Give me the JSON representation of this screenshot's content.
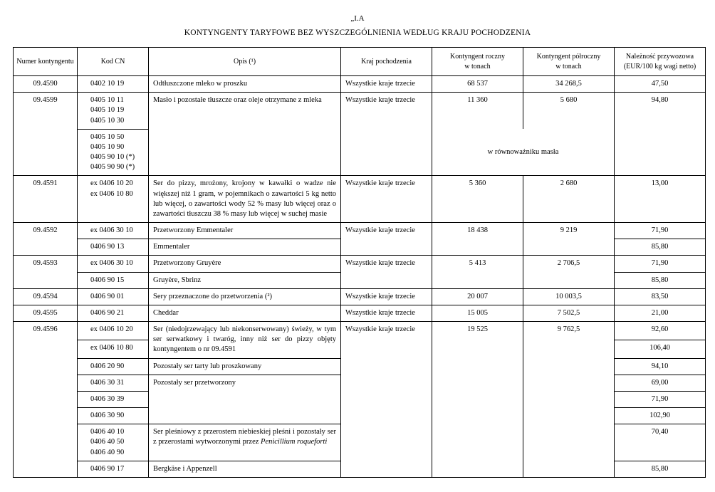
{
  "heading_small": "„I.A",
  "heading_main": "KONTYNGENTY TARYFOWE BEZ WYSZCZEGÓLNIENIA WEDŁUG KRAJU POCHODZENIA",
  "columns": {
    "num": "Numer kontyngentu",
    "cn": "Kod CN",
    "opis": "Opis (¹)",
    "kraj": "Kraj pochodzenia",
    "rocz_l1": "Kontyngent roczny",
    "rocz_l2": "w tonach",
    "pol_l1": "Kontyngent półroczny",
    "pol_l2": "w tonach",
    "nal_l1": "Należność przywozowa",
    "nal_l2": "(EUR/100 kg wagi netto)"
  },
  "equiv_note": "w równoważniku masła",
  "rows": {
    "r4590": {
      "num": "09.4590",
      "cn": "0402 10 19",
      "opis": "Odtłuszczone mleko w proszku",
      "kraj": "Wszystkie kraje trzecie",
      "rocz": "68 537",
      "pol": "34 268,5",
      "nal": "47,50"
    },
    "r4599": {
      "num": "09.4599",
      "cn_a1": "0405 10 11",
      "cn_a2": "0405 10 19",
      "cn_a3": "0405 10 30",
      "cn_b1": "0405 10 50",
      "cn_b2": "0405 10 90",
      "cn_b3": "0405 90 10 (*)",
      "cn_b4": "0405 90 90 (*)",
      "opis": "Masło i pozostałe tłuszcze oraz oleje otrzymane z mleka",
      "kraj": "Wszystkie kraje trzecie",
      "rocz": "11 360",
      "pol": "5 680",
      "nal": "94,80"
    },
    "r4591": {
      "num": "09.4591",
      "cn1": "ex 0406 10 20",
      "cn2": "ex 0406 10 80",
      "opis": "Ser do pizzy, mrożony, krojony w kawałki o wadze nie większej niż 1 gram, w pojemnikach o zawartości 5 kg netto lub więcej, o zawartości wody 52 % masy lub więcej oraz o zawartości tłuszczu 38 % masy lub więcej w suchej masie",
      "kraj": "Wszystkie kraje trzecie",
      "rocz": "5 360",
      "pol": "2 680",
      "nal": "13,00"
    },
    "r4592": {
      "num": "09.4592",
      "cn_a": "ex 0406 30 10",
      "opis_a": "Przetworzony Emmentaler",
      "kraj": "Wszystkie kraje trzecie",
      "rocz": "18 438",
      "pol": "9 219",
      "nal_a": "71,90",
      "cn_b": "0406 90 13",
      "opis_b": "Emmentaler",
      "nal_b": "85,80"
    },
    "r4593": {
      "num": "09.4593",
      "cn_a": "ex 0406 30 10",
      "opis_a": "Przetworzony Gruyère",
      "kraj": "Wszystkie kraje trzecie",
      "rocz": "5 413",
      "pol": "2 706,5",
      "nal_a": "71,90",
      "cn_b": "0406 90 15",
      "opis_b": "Gruyère, Sbrinz",
      "nal_b": "85,80"
    },
    "r4594": {
      "num": "09.4594",
      "cn": "0406 90 01",
      "opis": "Sery przeznaczone do przetworzenia (²)",
      "kraj": "Wszystkie kraje trzecie",
      "rocz": "20 007",
      "pol": "10 003,5",
      "nal": "83,50"
    },
    "r4595": {
      "num": "09.4595",
      "cn": "0406 90 21",
      "opis": "Cheddar",
      "kraj": "Wszystkie kraje trzecie",
      "rocz": "15 005",
      "pol": "7 502,5",
      "nal": "21,00"
    },
    "r4596": {
      "num": "09.4596",
      "kraj": "Wszystkie kraje trzecie",
      "rocz": "19 525",
      "pol": "9 762,5",
      "a_cn": "ex 0406 10 20",
      "a_nal": "92,60",
      "a_opis": "Ser (niedojrzewający lub niekonserwowany) świeży, w tym ser serwatkowy i twaróg, inny niż ser do pizzy objęty kontyngentem o nr 09.4591",
      "b_cn": "ex 0406 10 80",
      "b_nal": "106,40",
      "c_cn": "0406 20 90",
      "c_opis": "Pozostały ser tarty lub proszkowany",
      "c_nal": "94,10",
      "d_cn": "0406 30 31",
      "d_opis": "Pozostały ser przetworzony",
      "d_nal": "69,00",
      "e_cn": "0406 30 39",
      "e_nal": "71,90",
      "f_cn": "0406 30 90",
      "f_nal": "102,90",
      "g_cn1": "0406 40 10",
      "g_cn2": "0406 40 50",
      "g_cn3": "0406 40 90",
      "g_opis_pre": "Ser pleśniowy z przerostem niebieskiej pleśni i pozostały ser z przerostami wytworzonymi przez ",
      "g_opis_it": "Penicillium roqueforti",
      "g_nal": "70,40",
      "h_cn": "0406 90 17",
      "h_opis": "Bergkäse i Appenzell",
      "h_nal": "85,80"
    }
  }
}
